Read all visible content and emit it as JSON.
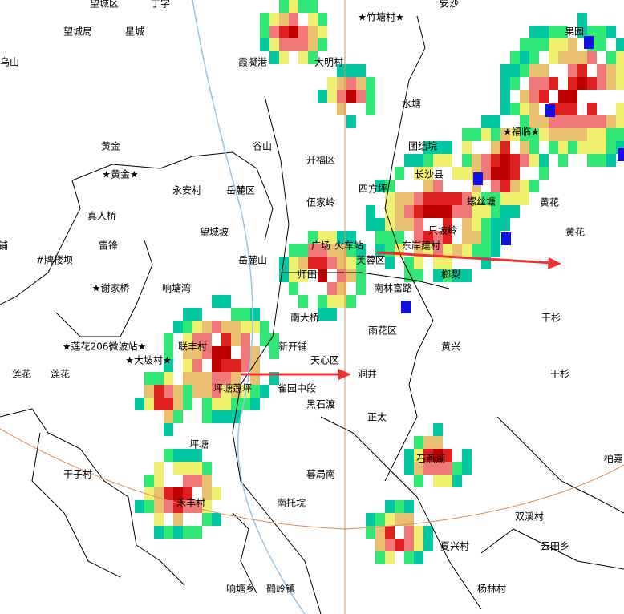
{
  "labels": [
    {
      "text": "望城区"
    },
    {
      "text": "丁字"
    },
    {
      "text": "★竹塘村★"
    },
    {
      "text": "安沙"
    },
    {
      "text": "望城局"
    },
    {
      "text": "星城"
    },
    {
      "text": "果园"
    },
    {
      "text": "乌山"
    },
    {
      "text": "霞凝港"
    },
    {
      "text": "大明村"
    },
    {
      "text": "水塘"
    },
    {
      "text": "★福临★"
    },
    {
      "text": "黄金"
    },
    {
      "text": "谷山"
    },
    {
      "text": "团结垸"
    },
    {
      "text": "开福区"
    },
    {
      "text": "★黄金★"
    },
    {
      "text": "永安村"
    },
    {
      "text": "岳麓区"
    },
    {
      "text": "四方坪"
    },
    {
      "text": "长沙县"
    },
    {
      "text": "螺丝塘"
    },
    {
      "text": "黄花"
    },
    {
      "text": "伍家岭"
    },
    {
      "text": "真人桥"
    },
    {
      "text": "望城坡"
    },
    {
      "text": "只坡岭"
    },
    {
      "text": "黄花"
    },
    {
      "text": "雷锋"
    },
    {
      "text": "广场"
    },
    {
      "text": "火车站"
    },
    {
      "text": "东岸建村"
    },
    {
      "text": "#牌楼坝"
    },
    {
      "text": "岳麓山"
    },
    {
      "text": "芙蓉区"
    },
    {
      "text": "师田"
    },
    {
      "text": "榔梨"
    },
    {
      "text": "★谢家桥"
    },
    {
      "text": "响塘湾"
    },
    {
      "text": "南林富路"
    },
    {
      "text": "南大桥"
    },
    {
      "text": "干杉"
    },
    {
      "text": "雨花区"
    },
    {
      "text": "新开铺"
    },
    {
      "text": "黄兴"
    },
    {
      "text": "★莲花206微波站★"
    },
    {
      "text": "联丰村"
    },
    {
      "text": "天心区"
    },
    {
      "text": "★大坡村★"
    },
    {
      "text": "莲花"
    },
    {
      "text": "莲花"
    },
    {
      "text": "洞井"
    },
    {
      "text": "干杉"
    },
    {
      "text": "坪塘莲坪"
    },
    {
      "text": "雀园中段"
    },
    {
      "text": "黑石渡"
    },
    {
      "text": "正太"
    },
    {
      "text": "坪塘"
    },
    {
      "text": "石燕湖"
    },
    {
      "text": "柏嘉"
    },
    {
      "text": "干子村"
    },
    {
      "text": "暮局南"
    },
    {
      "text": "禾丰村"
    },
    {
      "text": "南托垸"
    },
    {
      "text": "双溪村"
    },
    {
      "text": "夏兴村"
    },
    {
      "text": "云田乡"
    },
    {
      "text": "杨林村"
    },
    {
      "text": "响塘乡"
    },
    {
      "text": "鹤岭镇"
    },
    {
      "text": "铺"
    }
  ]
}
